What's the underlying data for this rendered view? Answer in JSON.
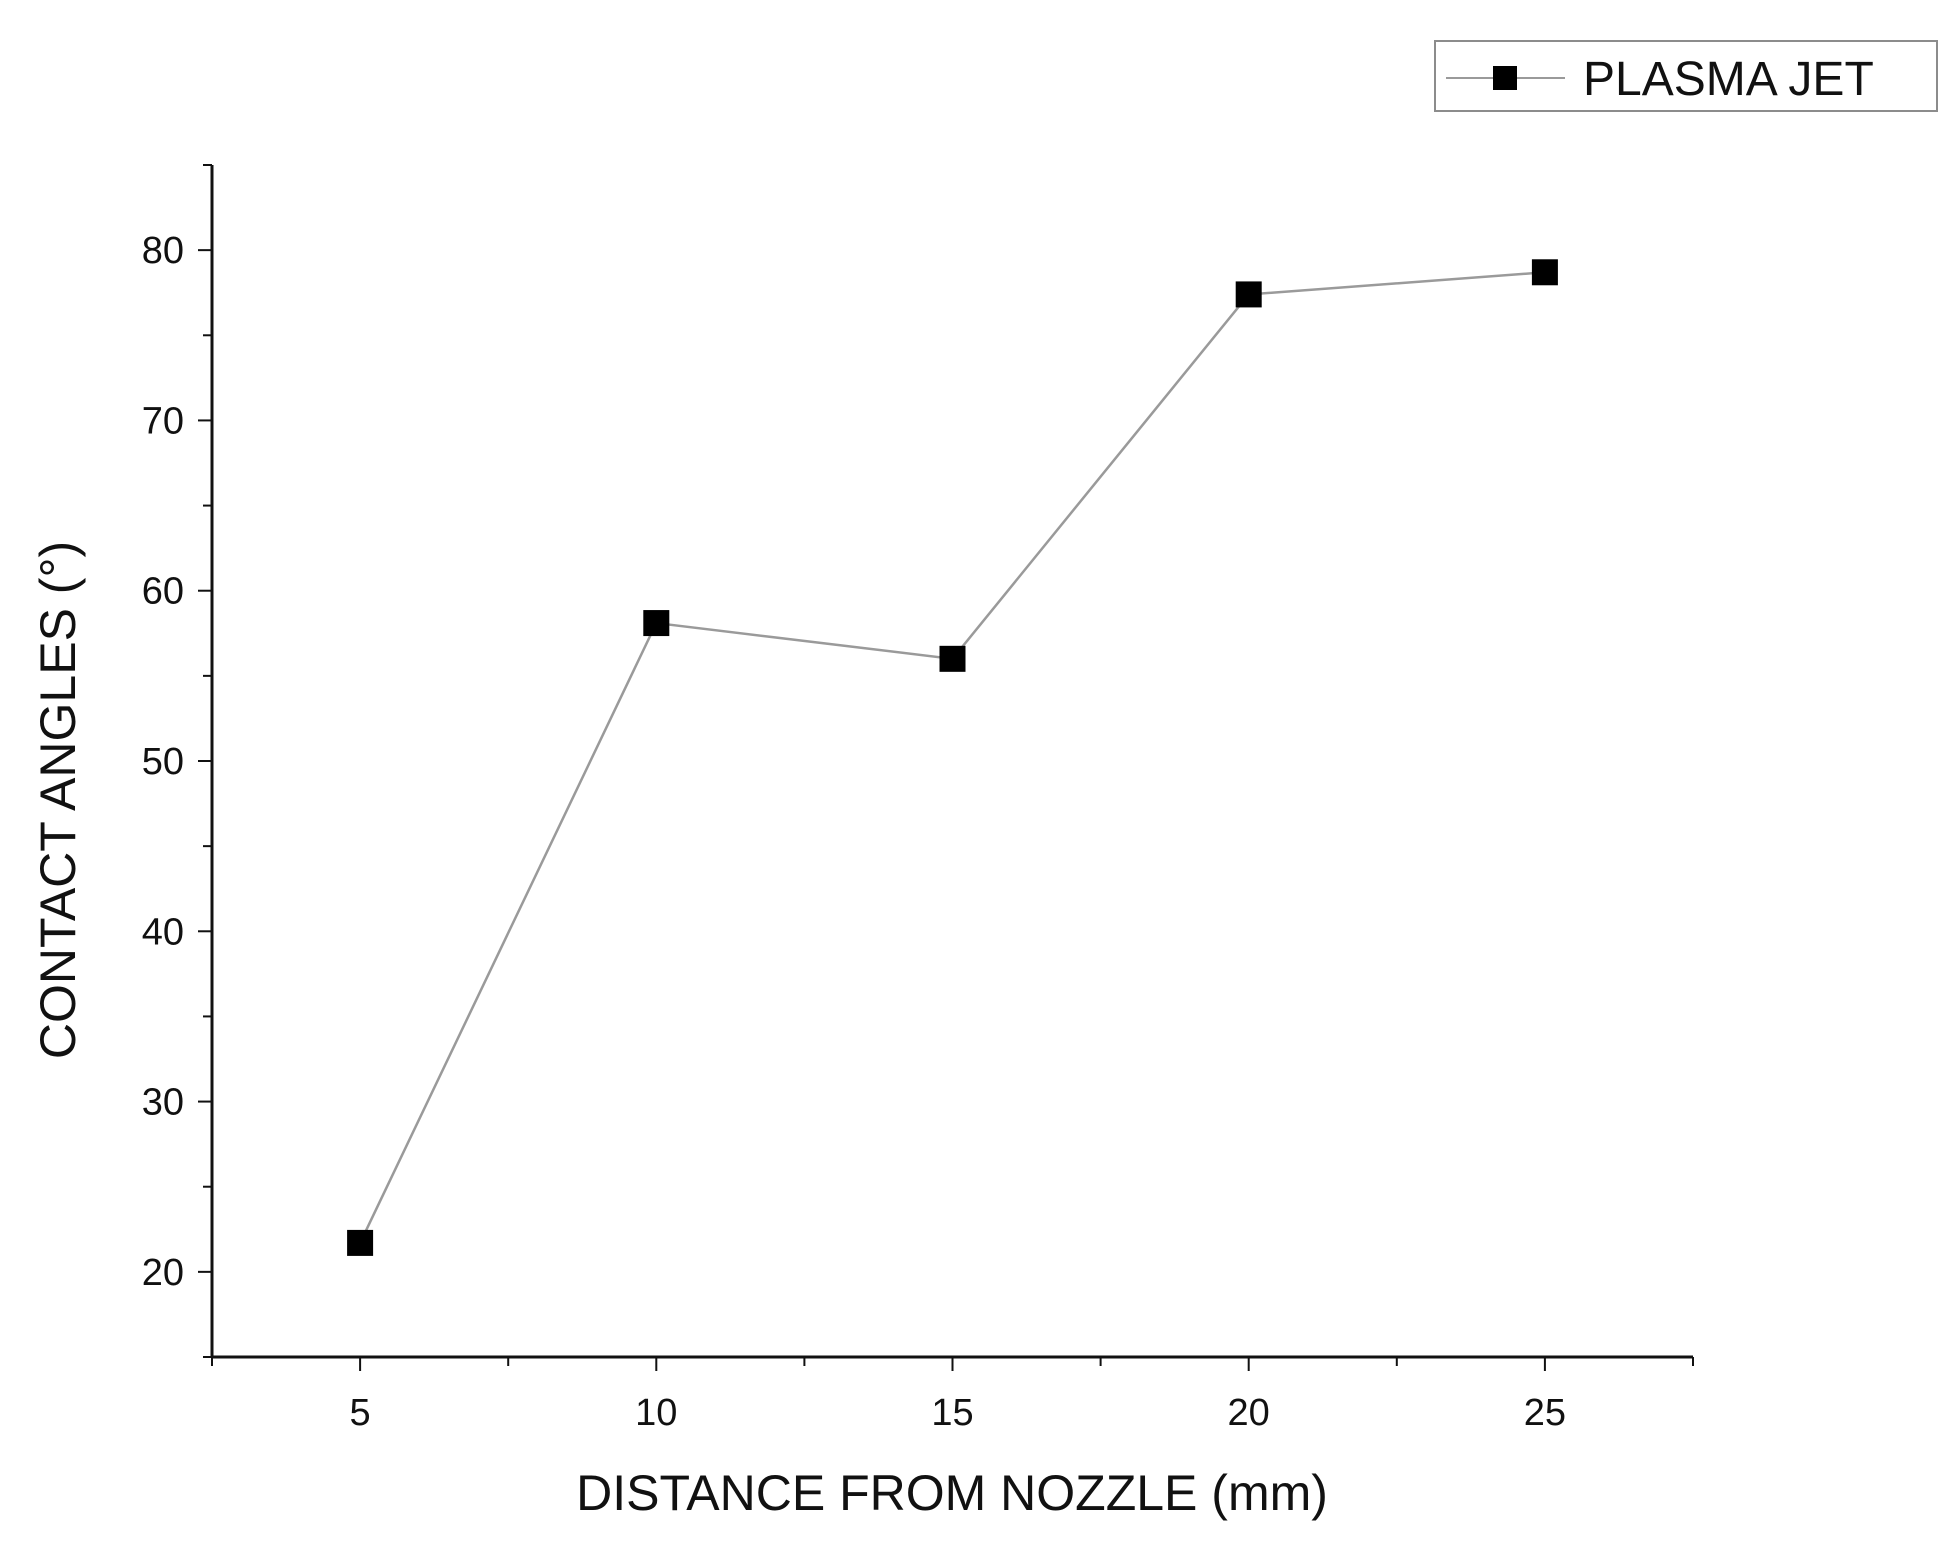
{
  "chart_data": {
    "type": "line",
    "title": "",
    "xlabel": "DISTANCE FROM NOZZLE (mm)",
    "ylabel": "CONTACT ANGLES (°)",
    "x": [
      5,
      10,
      15,
      20,
      25
    ],
    "series": [
      {
        "name": "PLASMA JET",
        "values": [
          21.7,
          58.1,
          56.0,
          77.4,
          78.7
        ],
        "marker": "square",
        "marker_color": "#000000",
        "line_color": "#9a9a9a"
      }
    ],
    "xlim": [
      2.5,
      27.5
    ],
    "ylim": [
      15,
      85
    ],
    "x_ticks": [
      "5",
      "10",
      "15",
      "20",
      "25"
    ],
    "y_ticks": [
      "20",
      "30",
      "40",
      "50",
      "60",
      "70",
      "80"
    ],
    "x_major_ticks": [
      5,
      10,
      15,
      20,
      25
    ],
    "y_major_ticks": [
      20,
      30,
      40,
      50,
      60,
      70,
      80
    ],
    "grid": false,
    "legend_position": "top-right"
  }
}
